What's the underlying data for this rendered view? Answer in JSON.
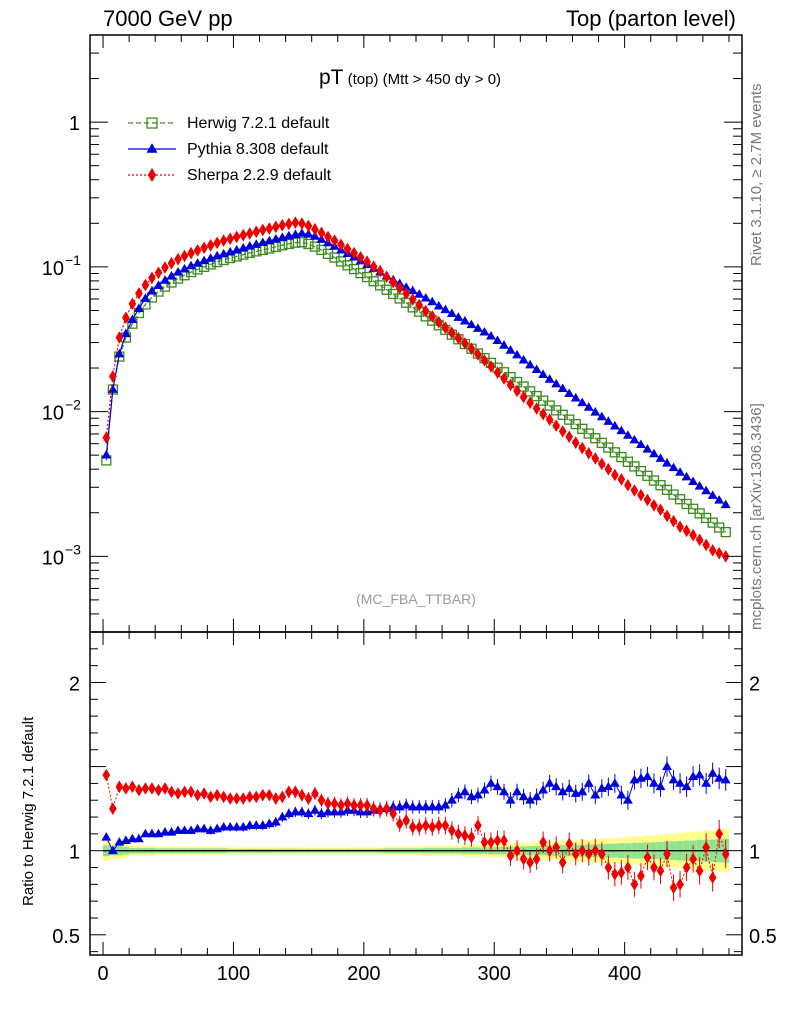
{
  "header": {
    "left": "7000 GeV pp",
    "right": "Top (parton level)"
  },
  "side_labels": {
    "rivet": "Rivet 3.1.10, ≥ 2.7M events",
    "mcplots": "mcplots.cern.ch [arXiv:1306.3436]"
  },
  "title": {
    "main": "pT",
    "sub": "(top)",
    "rest": "(Mtt > 450 dy > 0)"
  },
  "analysis_tag": "(MC_FBA_TTBAR)",
  "ratio_ylabel": "Ratio to Herwig 7.2.1 default",
  "colors": {
    "herwig": "#3a8a1e",
    "pythia": "#0000dd",
    "sherpa": "#ee0000",
    "band_outer": "#fffd8c",
    "band_inner": "#8fe38f"
  },
  "chart_data": [
    {
      "type": "line",
      "panel": "main",
      "yscale": "log",
      "ylim": [
        0.0003,
        4
      ],
      "xlim": [
        -10,
        490
      ],
      "yticks": [
        {
          "value": 0.001,
          "label": "10",
          "exp": "−3"
        },
        {
          "value": 0.01,
          "label": "10",
          "exp": "−2"
        },
        {
          "value": 0.1,
          "label": "10",
          "exp": "−1"
        },
        {
          "value": 1,
          "label": "1",
          "exp": ""
        }
      ],
      "legend_placement": "top-left",
      "x": [
        2.5,
        7.5,
        12.5,
        17.5,
        22.5,
        27.5,
        32.5,
        37.5,
        42.5,
        47.5,
        52.5,
        57.5,
        62.5,
        67.5,
        72.5,
        77.5,
        82.5,
        87.5,
        92.5,
        97.5,
        102.5,
        107.5,
        112.5,
        117.5,
        122.5,
        127.5,
        132.5,
        137.5,
        142.5,
        147.5,
        152.5,
        157.5,
        162.5,
        167.5,
        172.5,
        177.5,
        182.5,
        187.5,
        192.5,
        197.5,
        202.5,
        207.5,
        212.5,
        217.5,
        222.5,
        227.5,
        232.5,
        237.5,
        242.5,
        247.5,
        252.5,
        257.5,
        262.5,
        267.5,
        272.5,
        277.5,
        282.5,
        287.5,
        292.5,
        297.5,
        302.5,
        307.5,
        312.5,
        317.5,
        322.5,
        327.5,
        332.5,
        337.5,
        342.5,
        347.5,
        352.5,
        357.5,
        362.5,
        367.5,
        372.5,
        377.5,
        382.5,
        387.5,
        392.5,
        397.5,
        402.5,
        407.5,
        412.5,
        417.5,
        422.5,
        427.5,
        432.5,
        437.5,
        442.5,
        447.5,
        452.5,
        457.5,
        462.5,
        467.5,
        472.5,
        477.5
      ],
      "series": [
        {
          "name": "Herwig 7.2.1 default",
          "color": "#3a8a1e",
          "marker": "open-square",
          "linestyle": "dashed",
          "values": [
            0.0046,
            0.0142,
            0.024,
            0.0325,
            0.0405,
            0.048,
            0.055,
            0.0615,
            0.0675,
            0.073,
            0.078,
            0.083,
            0.0875,
            0.092,
            0.096,
            0.1,
            0.104,
            0.108,
            0.1115,
            0.115,
            0.118,
            0.1215,
            0.125,
            0.128,
            0.131,
            0.134,
            0.1375,
            0.141,
            0.144,
            0.147,
            0.148,
            0.144,
            0.138,
            0.131,
            0.123,
            0.116,
            0.109,
            0.1025,
            0.0965,
            0.0905,
            0.085,
            0.0795,
            0.0745,
            0.0695,
            0.065,
            0.0605,
            0.0565,
            0.0525,
            0.049,
            0.0455,
            0.0425,
            0.0395,
            0.0367,
            0.034,
            0.0316,
            0.0293,
            0.0272,
            0.0252,
            0.0234,
            0.0217,
            0.0201,
            0.0187,
            0.0173,
            0.016,
            0.0149,
            0.0138,
            0.0128,
            0.0119,
            0.011,
            0.0102,
            0.0095,
            0.0088,
            0.0082,
            0.0076,
            0.00705,
            0.00655,
            0.00608,
            0.00564,
            0.00523,
            0.00485,
            0.0045,
            0.00418,
            0.00388,
            0.0036,
            0.00334,
            0.0031,
            0.00288,
            0.00267,
            0.00248,
            0.0023,
            0.00213,
            0.00198,
            0.00184,
            0.00171,
            0.00158,
            0.00147
          ]
        },
        {
          "name": "Pythia 8.308 default",
          "color": "#0000dd",
          "marker": "filled-triangle",
          "linestyle": "solid",
          "values": [
            0.005,
            0.0142,
            0.025,
            0.0345,
            0.0432,
            0.0515,
            0.0605,
            0.068,
            0.0742,
            0.0807,
            0.0862,
            0.0917,
            0.0965,
            0.1015,
            0.1058,
            0.1102,
            0.1144,
            0.1188,
            0.1226,
            0.1265,
            0.1303,
            0.1346,
            0.1387,
            0.1428,
            0.147,
            0.1512,
            0.1554,
            0.1593,
            0.1635,
            0.1668,
            0.1705,
            0.168,
            0.1625,
            0.1545,
            0.1465,
            0.1385,
            0.1305,
            0.1235,
            0.1168,
            0.1098,
            0.1035,
            0.0972,
            0.0918,
            0.0861,
            0.0812,
            0.0766,
            0.0721,
            0.0684,
            0.0645,
            0.0608,
            0.0573,
            0.0536,
            0.0505,
            0.0475,
            0.0447,
            0.0422,
            0.0398,
            0.0375,
            0.0354,
            0.0332,
            0.0309,
            0.0287,
            0.0265,
            0.0246,
            0.0227,
            0.021,
            0.0195,
            0.018,
            0.0167,
            0.0155,
            0.0144,
            0.0133,
            0.0124,
            0.0115,
            0.0107,
            0.0099,
            0.0092,
            0.00855,
            0.00794,
            0.00737,
            0.00685,
            0.00636,
            0.00591,
            0.00549,
            0.0051,
            0.00474,
            0.0044,
            0.00409,
            0.0038,
            0.00353,
            0.00328,
            0.00305,
            0.00283,
            0.00263,
            0.00244,
            0.00227
          ]
        },
        {
          "name": "Sherpa 2.2.9 default",
          "color": "#ee0000",
          "marker": "filled-diamond",
          "linestyle": "dotted",
          "values": [
            0.0066,
            0.0175,
            0.0325,
            0.0445,
            0.0555,
            0.0655,
            0.075,
            0.084,
            0.091,
            0.099,
            0.106,
            0.113,
            0.119,
            0.1245,
            0.13,
            0.1355,
            0.141,
            0.1465,
            0.152,
            0.1565,
            0.161,
            0.1655,
            0.17,
            0.175,
            0.18,
            0.184,
            0.189,
            0.194,
            0.198,
            0.202,
            0.199,
            0.192,
            0.182,
            0.172,
            0.161,
            0.152,
            0.142,
            0.133,
            0.1245,
            0.1165,
            0.1085,
            0.1005,
            0.0935,
            0.0855,
            0.0785,
            0.0715,
            0.0655,
            0.0595,
            0.0545,
            0.0495,
            0.0455,
            0.0415,
            0.038,
            0.035,
            0.0322,
            0.0296,
            0.0272,
            0.0248,
            0.0226,
            0.0205,
            0.0186,
            0.0169,
            0.0153,
            0.0139,
            0.0126,
            0.0115,
            0.0105,
            0.0096,
            0.0088,
            0.008,
            0.0073,
            0.0067,
            0.0061,
            0.0056,
            0.00515,
            0.00475,
            0.00435,
            0.004,
            0.00365,
            0.0034,
            0.0031,
            0.00285,
            0.00265,
            0.00245,
            0.00225,
            0.0021,
            0.0019,
            0.00175,
            0.0016,
            0.0015,
            0.0014,
            0.0013,
            0.0012,
            0.0011,
            0.00105,
            0.001
          ]
        }
      ]
    },
    {
      "type": "line",
      "panel": "ratio",
      "ylabel": "Ratio to Herwig 7.2.1 default",
      "ylim": [
        0.38,
        2.3
      ],
      "xlim": [
        -10,
        490
      ],
      "xticks": [
        0,
        100,
        200,
        300,
        400
      ],
      "yticks": [
        0.5,
        1,
        2
      ],
      "x": [
        2.5,
        7.5,
        12.5,
        17.5,
        22.5,
        27.5,
        32.5,
        37.5,
        42.5,
        47.5,
        52.5,
        57.5,
        62.5,
        67.5,
        72.5,
        77.5,
        82.5,
        87.5,
        92.5,
        97.5,
        102.5,
        107.5,
        112.5,
        117.5,
        122.5,
        127.5,
        132.5,
        137.5,
        142.5,
        147.5,
        152.5,
        157.5,
        162.5,
        167.5,
        172.5,
        177.5,
        182.5,
        187.5,
        192.5,
        197.5,
        202.5,
        207.5,
        212.5,
        217.5,
        222.5,
        227.5,
        232.5,
        237.5,
        242.5,
        247.5,
        252.5,
        257.5,
        262.5,
        267.5,
        272.5,
        277.5,
        282.5,
        287.5,
        292.5,
        297.5,
        302.5,
        307.5,
        312.5,
        317.5,
        322.5,
        327.5,
        332.5,
        337.5,
        342.5,
        347.5,
        352.5,
        357.5,
        362.5,
        367.5,
        372.5,
        377.5,
        382.5,
        387.5,
        392.5,
        397.5,
        402.5,
        407.5,
        412.5,
        417.5,
        422.5,
        427.5,
        432.5,
        437.5,
        442.5,
        447.5,
        452.5,
        457.5,
        462.5,
        467.5,
        472.5,
        477.5
      ],
      "series": [
        {
          "name": "Pythia 8.308 default",
          "color": "#0000dd",
          "values": [
            1.08,
            1.0,
            1.05,
            1.06,
            1.07,
            1.07,
            1.1,
            1.1,
            1.1,
            1.11,
            1.11,
            1.12,
            1.12,
            1.12,
            1.13,
            1.13,
            1.12,
            1.13,
            1.14,
            1.14,
            1.14,
            1.14,
            1.15,
            1.15,
            1.15,
            1.16,
            1.17,
            1.2,
            1.22,
            1.23,
            1.23,
            1.22,
            1.24,
            1.22,
            1.23,
            1.23,
            1.23,
            1.24,
            1.24,
            1.23,
            1.23,
            1.24,
            1.25,
            1.25,
            1.26,
            1.26,
            1.27,
            1.26,
            1.26,
            1.26,
            1.26,
            1.26,
            1.27,
            1.3,
            1.33,
            1.35,
            1.32,
            1.33,
            1.36,
            1.4,
            1.38,
            1.35,
            1.3,
            1.35,
            1.32,
            1.3,
            1.32,
            1.36,
            1.4,
            1.38,
            1.35,
            1.37,
            1.34,
            1.35,
            1.4,
            1.33,
            1.37,
            1.38,
            1.4,
            1.33,
            1.3,
            1.42,
            1.43,
            1.44,
            1.4,
            1.38,
            1.5,
            1.42,
            1.4,
            1.38,
            1.44,
            1.45,
            1.4,
            1.46,
            1.43,
            1.42
          ]
        },
        {
          "name": "Sherpa 2.2.9 default",
          "color": "#ee0000",
          "values": [
            1.45,
            1.25,
            1.38,
            1.37,
            1.38,
            1.36,
            1.37,
            1.37,
            1.36,
            1.37,
            1.35,
            1.34,
            1.35,
            1.35,
            1.33,
            1.34,
            1.32,
            1.33,
            1.32,
            1.31,
            1.31,
            1.31,
            1.32,
            1.32,
            1.33,
            1.33,
            1.31,
            1.32,
            1.35,
            1.35,
            1.33,
            1.31,
            1.34,
            1.3,
            1.28,
            1.28,
            1.27,
            1.28,
            1.27,
            1.27,
            1.27,
            1.25,
            1.24,
            1.25,
            1.22,
            1.16,
            1.18,
            1.14,
            1.14,
            1.15,
            1.14,
            1.15,
            1.15,
            1.12,
            1.1,
            1.09,
            1.08,
            1.15,
            1.05,
            1.05,
            1.06,
            1.06,
            0.97,
            1.0,
            0.95,
            0.93,
            0.95,
            1.05,
            1.0,
            1.02,
            0.93,
            1.04,
            0.98,
            1.0,
            0.98,
            1.0,
            0.98,
            0.9,
            0.86,
            0.87,
            0.9,
            0.8,
            0.85,
            0.96,
            0.9,
            0.88,
            0.98,
            0.78,
            0.8,
            0.9,
            0.95,
            0.88,
            1.02,
            0.84,
            1.1,
            0.98
          ]
        }
      ],
      "band_half_width": [
        0.06,
        0.05,
        0.05,
        0.04,
        0.03,
        0.03,
        0.03,
        0.03,
        0.025,
        0.025,
        0.025,
        0.025,
        0.025,
        0.025,
        0.025,
        0.025,
        0.025,
        0.025,
        0.025,
        0.02,
        0.02,
        0.02,
        0.02,
        0.02,
        0.02,
        0.02,
        0.02,
        0.02,
        0.02,
        0.02,
        0.02,
        0.02,
        0.02,
        0.02,
        0.02,
        0.02,
        0.02,
        0.02,
        0.02,
        0.02,
        0.02,
        0.02,
        0.02,
        0.025,
        0.025,
        0.025,
        0.025,
        0.025,
        0.025,
        0.03,
        0.03,
        0.03,
        0.03,
        0.03,
        0.03,
        0.035,
        0.035,
        0.035,
        0.035,
        0.04,
        0.04,
        0.04,
        0.045,
        0.045,
        0.045,
        0.05,
        0.05,
        0.05,
        0.055,
        0.055,
        0.06,
        0.06,
        0.06,
        0.065,
        0.065,
        0.07,
        0.07,
        0.075,
        0.075,
        0.08,
        0.08,
        0.085,
        0.085,
        0.09,
        0.09,
        0.095,
        0.1,
        0.1,
        0.105,
        0.11,
        0.11,
        0.115,
        0.12,
        0.12,
        0.125,
        0.13
      ],
      "reference_line": 1
    }
  ]
}
